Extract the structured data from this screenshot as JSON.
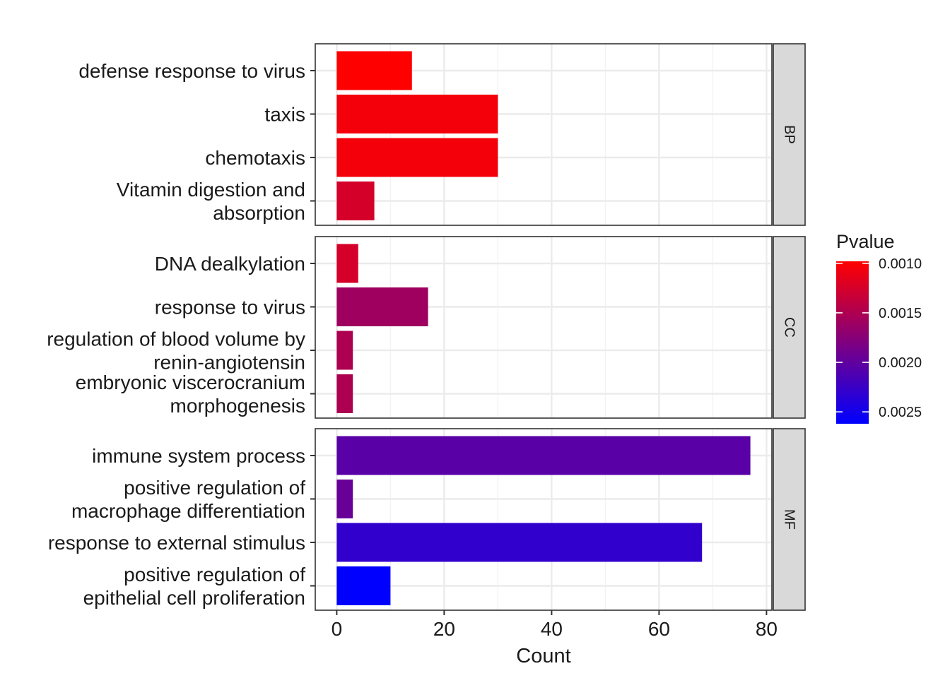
{
  "chart_data": {
    "type": "bar",
    "orientation": "horizontal",
    "xlabel": "Count",
    "xlim": [
      -4,
      81
    ],
    "xticks": [
      0,
      20,
      40,
      60,
      80
    ],
    "grid": true,
    "legend": {
      "title": "Pvalue",
      "placement": "right",
      "range": [
        0.00098,
        0.00262
      ],
      "ticks": [
        {
          "value": 0.001,
          "label": "0.0010"
        },
        {
          "value": 0.0015,
          "label": "0.0015"
        },
        {
          "value": 0.002,
          "label": "0.0020"
        },
        {
          "value": 0.0025,
          "label": "0.0025"
        }
      ],
      "colors": [
        "#FF0000",
        "#0000FF"
      ]
    },
    "panels": [
      {
        "facet": "BP",
        "bars": [
          {
            "label": [
              "defense response to virus"
            ],
            "value": 14,
            "pvalue": 0.00098
          },
          {
            "label": [
              "taxis"
            ],
            "value": 30,
            "pvalue": 0.00105
          },
          {
            "label": [
              "chemotaxis"
            ],
            "value": 30,
            "pvalue": 0.00105
          },
          {
            "label": [
              "Vitamin digestion and",
              "absorption"
            ],
            "value": 7,
            "pvalue": 0.00125
          }
        ]
      },
      {
        "facet": "CC",
        "bars": [
          {
            "label": [
              "DNA dealkylation"
            ],
            "value": 4,
            "pvalue": 0.00125
          },
          {
            "label": [
              "response to virus"
            ],
            "value": 17,
            "pvalue": 0.0016
          },
          {
            "label": [
              "regulation of blood volume by",
              "renin-angiotensin"
            ],
            "value": 3,
            "pvalue": 0.0015
          },
          {
            "label": [
              "embryonic viscerocranium",
              "morphogenesis"
            ],
            "value": 3,
            "pvalue": 0.0015
          }
        ]
      },
      {
        "facet": "MF",
        "bars": [
          {
            "label": [
              "immune system process"
            ],
            "value": 77,
            "pvalue": 0.00205
          },
          {
            "label": [
              "positive regulation of",
              "macrophage differentiation"
            ],
            "value": 3,
            "pvalue": 0.00195
          },
          {
            "label": [
              "response to external stimulus"
            ],
            "value": 68,
            "pvalue": 0.0023
          },
          {
            "label": [
              "positive regulation of",
              "epithelial cell proliferation"
            ],
            "value": 10,
            "pvalue": 0.00262
          }
        ]
      }
    ]
  }
}
